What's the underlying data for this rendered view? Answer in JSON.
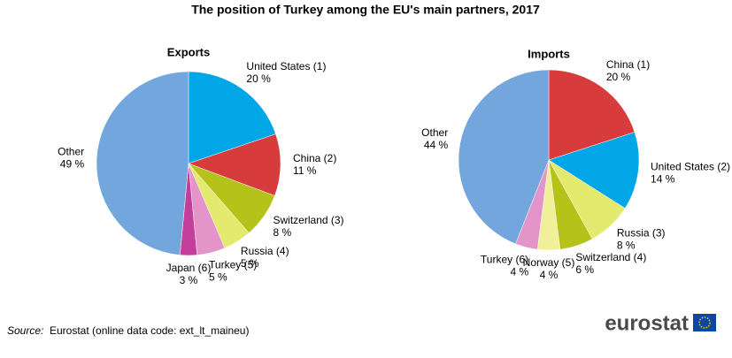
{
  "title": "The position of Turkey among the EU's main partners, 2017",
  "source_label": "Source:",
  "source_text": "Eurostat (online data code: ext_lt_maineu)",
  "logo": "eurostat",
  "chart_data": [
    {
      "type": "pie",
      "title": "Exports",
      "categories": [
        "United States (1)",
        "China (2)",
        "Switzerland (3)",
        "Russia (4)",
        "Turkey (5)",
        "Japan (6)",
        "Other"
      ],
      "values": [
        20,
        11,
        8,
        5,
        5,
        3,
        49
      ],
      "value_labels": [
        "20 %",
        "11 %",
        "8 %",
        "5 %",
        "5 %",
        "3 %",
        "49 %"
      ],
      "colors": [
        "#00a6e6",
        "#d83b3b",
        "#b5c21a",
        "#e3ea6e",
        "#e394c8",
        "#c43f9b",
        "#72a6dc"
      ]
    },
    {
      "type": "pie",
      "title": "Imports",
      "categories": [
        "China (1)",
        "United States (2)",
        "Russia (3)",
        "Switzerland (4)",
        "Norway (5)",
        "Turkey (6)",
        "Other"
      ],
      "values": [
        20,
        14,
        8,
        6,
        4,
        4,
        44
      ],
      "value_labels": [
        "20 %",
        "14 %",
        "8 %",
        "6 %",
        "4 %",
        "4 %",
        "44 %"
      ],
      "colors": [
        "#d83b3b",
        "#00a6e6",
        "#e3ea6e",
        "#b5c21a",
        "#f0f09a",
        "#e394c8",
        "#72a6dc"
      ]
    }
  ]
}
